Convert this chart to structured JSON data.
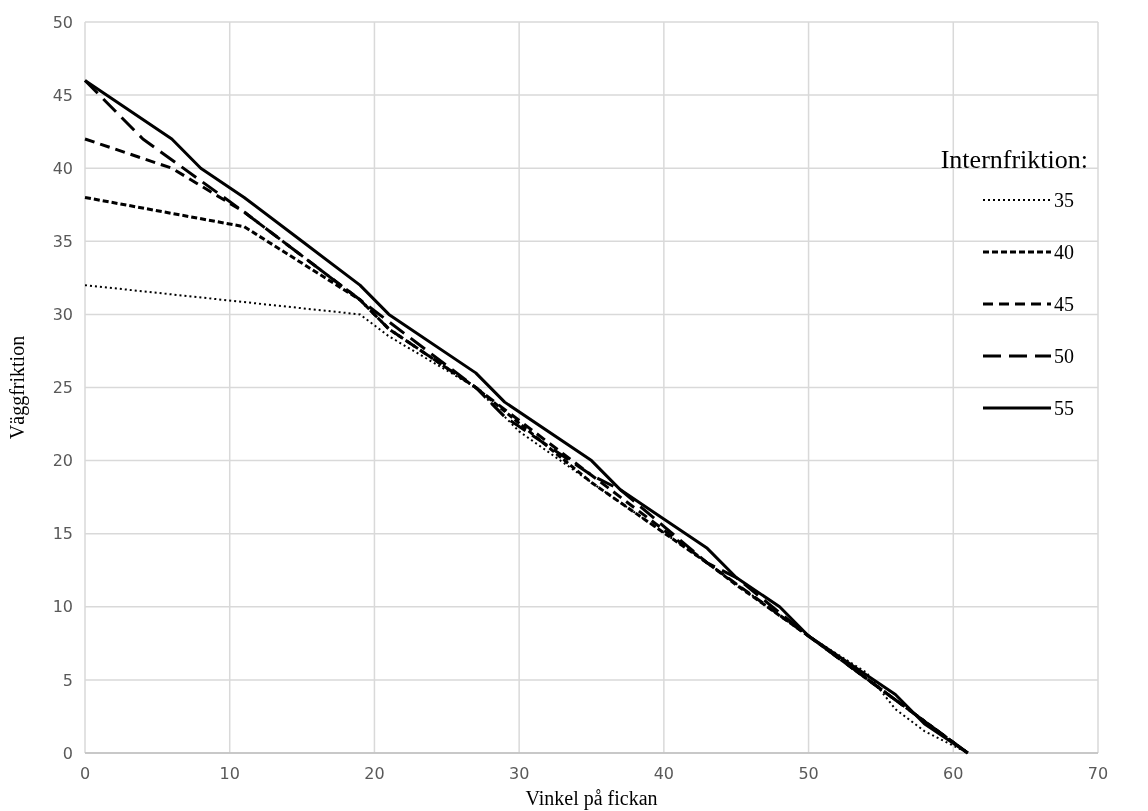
{
  "chart_data": {
    "type": "line",
    "xlabel": "Vinkel på fickan",
    "ylabel": "Väggfriktion",
    "legend_title": "Internfriktion:",
    "legend": "top right",
    "grid": true,
    "xlim": [
      0,
      70
    ],
    "xticks": [
      0,
      10,
      20,
      30,
      40,
      50,
      60,
      70
    ],
    "ylim": [
      0,
      50
    ],
    "yticks": [
      0,
      5,
      10,
      15,
      20,
      25,
      30,
      35,
      40,
      45,
      50
    ],
    "series": [
      {
        "name": "35",
        "color": "#000000",
        "line_style": "dotted",
        "x": [
          0,
          19,
          21,
          27,
          30,
          35,
          43,
          50,
          54,
          56,
          58,
          61
        ],
        "values": [
          32,
          30,
          28.5,
          25,
          22,
          18.5,
          13,
          8,
          5.5,
          3,
          1.5,
          0
        ]
      },
      {
        "name": "40",
        "color": "#000000",
        "line_style": "dashed",
        "x": [
          0,
          11,
          19,
          21,
          27,
          35,
          43,
          45,
          50,
          61
        ],
        "values": [
          38,
          36,
          31,
          29,
          25,
          18.5,
          13,
          11.5,
          8,
          0
        ]
      },
      {
        "name": "45",
        "color": "#000000",
        "line_style": "dashed",
        "x": [
          0,
          6,
          11,
          15,
          19,
          21,
          27,
          35,
          43,
          50,
          61
        ],
        "values": [
          42,
          40,
          37,
          34,
          31,
          29,
          25,
          19,
          13,
          8,
          0
        ]
      },
      {
        "name": "50",
        "color": "#000000",
        "line_style": "dashed",
        "x": [
          0,
          4,
          11,
          19,
          21,
          27,
          29,
          35,
          37,
          43,
          45,
          50,
          61
        ],
        "values": [
          46,
          42,
          37,
          31,
          29.5,
          25,
          23,
          19,
          18,
          13,
          12,
          8,
          0
        ]
      },
      {
        "name": "55",
        "color": "#000000",
        "line_style": "solid",
        "x": [
          0,
          6,
          8,
          11,
          15,
          19,
          21,
          27,
          29,
          35,
          37,
          43,
          45,
          48,
          50,
          56,
          58,
          61
        ],
        "values": [
          46,
          42,
          40,
          38,
          35,
          32,
          30,
          26,
          24,
          20,
          18,
          14,
          12,
          10,
          8,
          4,
          2,
          0
        ]
      }
    ]
  }
}
